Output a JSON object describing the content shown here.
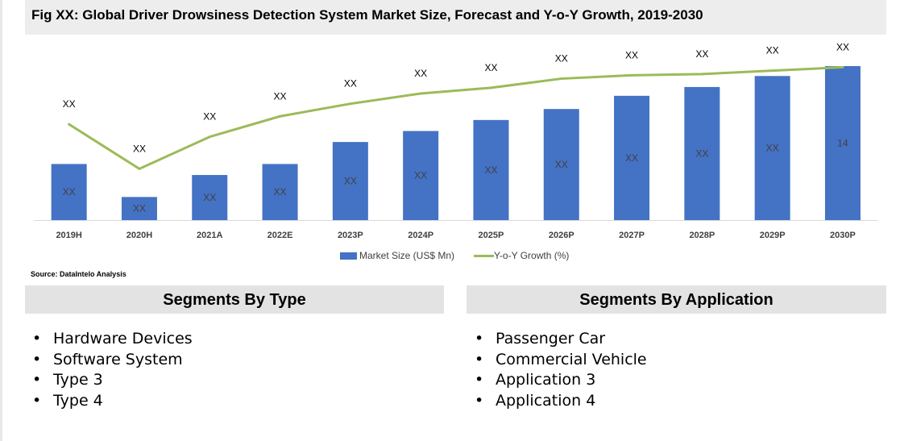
{
  "title": "Fig XX: Global Driver Drowsiness Detection System Market Size, Forecast and Y-o-Y Growth, 2019-2030",
  "source": "Source: DataIntelo Analysis",
  "colors": {
    "bar": "#4472c4",
    "line": "#9bbb59",
    "header_bg": "#e3e3e3",
    "title_bg": "#ededed"
  },
  "chart_data": {
    "type": "bar",
    "categories": [
      "2019H",
      "2020H",
      "2021A",
      "2022E",
      "2023P",
      "2024P",
      "2025P",
      "2026P",
      "2027P",
      "2028P",
      "2029P",
      "2030P"
    ],
    "series": [
      {
        "name": "Market Size (US$ Mn)",
        "type": "bar",
        "axis": "left",
        "values": [
          5.1,
          2.1,
          4.1,
          5.1,
          7.1,
          8.1,
          9.1,
          10.1,
          11.3,
          12.1,
          13.1,
          14.0
        ],
        "labels": [
          "XX",
          "XX",
          "XX",
          "XX",
          "XX",
          "XX",
          "XX",
          "XX",
          "XX",
          "XX",
          "XX",
          "14"
        ]
      },
      {
        "name": "Y-o-Y Growth (%)",
        "type": "line",
        "axis": "right",
        "values": [
          8.4,
          4.5,
          7.3,
          9.1,
          10.2,
          11.1,
          11.6,
          12.4,
          12.7,
          12.8,
          13.1,
          13.4
        ],
        "labels": [
          "XX",
          "XX",
          "XX",
          "XX",
          "XX",
          "XX",
          "XX",
          "XX",
          "XX",
          "XX",
          "XX",
          "XX"
        ]
      }
    ],
    "ylim_left": [
      0,
      14
    ],
    "ylim_right": [
      0,
      13.5
    ],
    "legend_position": "bottom",
    "grid": false
  },
  "segments": {
    "type": {
      "header": "Segments By Type",
      "items": [
        "Hardware Devices",
        "Software System",
        "Type 3",
        "Type 4"
      ]
    },
    "application": {
      "header": "Segments By Application",
      "items": [
        "Passenger Car",
        "Commercial Vehicle",
        "Application 3",
        "Application 4"
      ]
    }
  },
  "bullet_glyph": "•"
}
